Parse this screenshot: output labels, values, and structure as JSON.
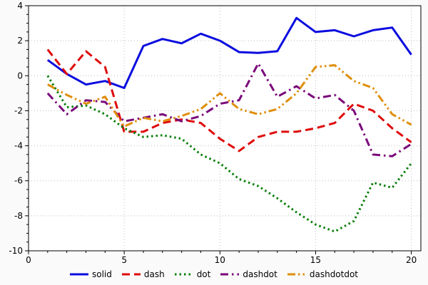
{
  "chart_data": {
    "type": "line",
    "title": "",
    "xlabel": "",
    "ylabel": "",
    "xlim": [
      0,
      20.5
    ],
    "ylim": [
      -10,
      4
    ],
    "xticks": [
      0,
      5,
      10,
      15,
      20
    ],
    "yticks": [
      -10,
      -8,
      -6,
      -4,
      -2,
      0,
      2,
      4
    ],
    "x_minor_step": 1,
    "y_minor_step": 0.5,
    "grid": true,
    "grid_color": "#bfbfbf",
    "background_color": "#fafafa",
    "plot_background": "#ffffff",
    "legend_position": "bottom",
    "x": [
      1,
      2,
      3,
      4,
      5,
      6,
      7,
      8,
      9,
      10,
      11,
      12,
      13,
      14,
      15,
      16,
      17,
      18,
      19,
      20
    ],
    "series": [
      {
        "name": "solid",
        "color": "#0b0bdf",
        "dash_style": "solid",
        "values": [
          0.9,
          0.1,
          -0.5,
          -0.3,
          -0.7,
          1.7,
          2.1,
          1.85,
          2.4,
          2.0,
          1.35,
          1.3,
          1.4,
          3.3,
          2.5,
          2.6,
          2.25,
          2.6,
          2.75,
          1.2
        ]
      },
      {
        "name": "dash",
        "color": "#df0b0b",
        "dash_style": "dash",
        "values": [
          1.5,
          0.1,
          1.4,
          0.5,
          -3.2,
          -3.2,
          -2.7,
          -2.5,
          -2.7,
          -3.6,
          -4.3,
          -3.5,
          -3.2,
          -3.2,
          -3.0,
          -2.7,
          -1.6,
          -2.0,
          -3.0,
          -3.8
        ]
      },
      {
        "name": "dot",
        "color": "#067d06",
        "dash_style": "dot",
        "values": [
          0.0,
          -1.8,
          -1.7,
          -2.2,
          -3.0,
          -3.5,
          -3.4,
          -3.6,
          -4.5,
          -5.0,
          -5.9,
          -6.3,
          -7.0,
          -7.8,
          -8.5,
          -8.9,
          -8.3,
          -6.1,
          -6.4,
          -5.0
        ]
      },
      {
        "name": "dashdot",
        "color": "#7a077a",
        "dash_style": "dashdot",
        "values": [
          -1.0,
          -2.2,
          -1.4,
          -1.5,
          -2.6,
          -2.4,
          -2.2,
          -2.6,
          -2.3,
          -1.6,
          -1.4,
          0.7,
          -1.2,
          -0.6,
          -1.3,
          -1.1,
          -2.0,
          -4.5,
          -4.6,
          -3.9
        ]
      },
      {
        "name": "dashdotdot",
        "color": "#df8e0b",
        "dash_style": "dashdotdot",
        "values": [
          -0.5,
          -1.1,
          -1.6,
          -1.2,
          -2.9,
          -2.4,
          -2.6,
          -2.3,
          -1.9,
          -1.0,
          -1.9,
          -2.2,
          -1.9,
          -1.0,
          0.5,
          0.6,
          -0.3,
          -0.7,
          -2.2,
          -2.8
        ]
      }
    ]
  }
}
